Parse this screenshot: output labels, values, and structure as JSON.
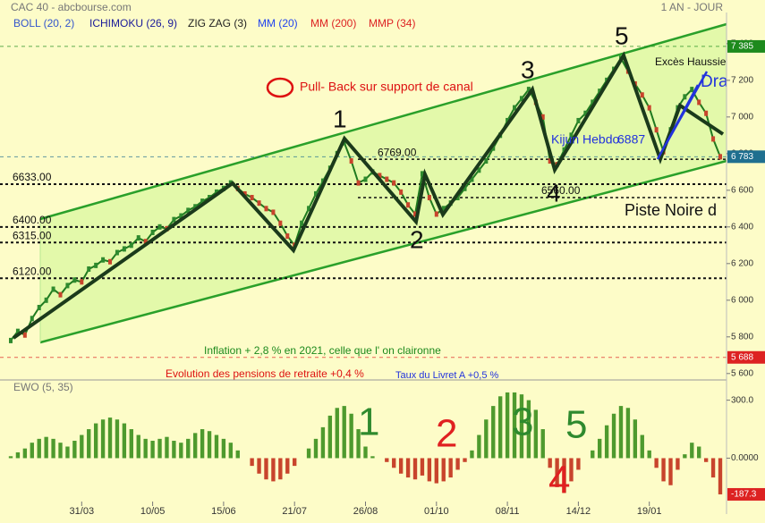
{
  "chart_data": [
    {
      "type": "line",
      "title": "CAC 40 - abcbourse.com",
      "period": "1 AN - JOUR",
      "indicators": [
        {
          "name": "BOLL (20, 2)",
          "color": "#3355cc"
        },
        {
          "name": "ICHIMOKU (26, 9)",
          "color": "#1a1a99"
        },
        {
          "name": "ZIG ZAG (3)",
          "color": "#222222"
        },
        {
          "name": "MM (20)",
          "color": "#2244ee"
        },
        {
          "name": "MM (200)",
          "color": "#dd2222"
        },
        {
          "name": "MMP (34)",
          "color": "#dd2222"
        }
      ],
      "series": [
        {
          "color": "#1f7a1f",
          "values": [
            5780,
            5830,
            5810,
            5900,
            5960,
            6000,
            6060,
            6030,
            6080,
            6110,
            6100,
            6170,
            6190,
            6220,
            6210,
            6260,
            6280,
            6300,
            6340,
            6320,
            6370,
            6400,
            6390,
            6440,
            6460,
            6490,
            6510,
            6540,
            6560,
            6590,
            6610,
            6640,
            6610,
            6580,
            6560,
            6530,
            6500,
            6480,
            6420,
            6350,
            6300,
            6420,
            6500,
            6580,
            6650,
            6720,
            6800,
            6860,
            6760,
            6640,
            6660,
            6700,
            6680,
            6660,
            6640,
            6590,
            6520,
            6470,
            6690,
            6560,
            6470,
            6500,
            6530,
            6560,
            6610,
            6660,
            6710,
            6760,
            6830,
            6900,
            6980,
            7050,
            7100,
            7150,
            7080,
            7000,
            6760,
            6740,
            6820,
            6900,
            6980,
            7020,
            7080,
            7140,
            7200,
            7260,
            7320,
            7250,
            7180,
            7120,
            7050,
            6930,
            6810,
            6930,
            7050,
            7110,
            7150,
            7080,
            7020,
            6880,
            6783
          ]
        }
      ],
      "xticks": [
        {
          "value": 10,
          "label": "31/03"
        },
        {
          "value": 20,
          "label": "10/05"
        },
        {
          "value": 30,
          "label": "15/06"
        },
        {
          "value": 40,
          "label": "21/07"
        },
        {
          "value": 50,
          "label": "26/08"
        },
        {
          "value": 60,
          "label": "01/10"
        },
        {
          "value": 70,
          "label": "08/11"
        },
        {
          "value": 80,
          "label": "14/12"
        },
        {
          "value": 90,
          "label": "19/01"
        }
      ],
      "xlim": [
        0,
        100
      ],
      "ylim": [
        5560,
        7570
      ],
      "yticks": [
        {
          "value": 7400,
          "label": "7 400"
        },
        {
          "value": 7200,
          "label": "7 200"
        },
        {
          "value": 7000,
          "label": "7 000"
        },
        {
          "value": 6800,
          "label": "6 800"
        },
        {
          "value": 6600,
          "label": "6 600"
        },
        {
          "value": 6400,
          "label": "6 400"
        },
        {
          "value": 6200,
          "label": "6 200"
        },
        {
          "value": 6000,
          "label": "6 000"
        },
        {
          "value": 5800,
          "label": "5 800"
        },
        {
          "value": 5600,
          "label": "5 600"
        }
      ],
      "levels": [
        {
          "value": 6633,
          "label": "6633.00"
        },
        {
          "value": 6400,
          "label": "6400.00"
        },
        {
          "value": 6315,
          "label": "6315.00"
        },
        {
          "value": 6120,
          "label": "6120.00"
        },
        {
          "value": 6769,
          "label": "6769.00"
        },
        {
          "value": 6560,
          "label": "6560.00"
        }
      ],
      "markers": [
        {
          "value": 7385,
          "label": "7 385",
          "color": "#1d8a1d"
        },
        {
          "value": 6783,
          "label": "6 783",
          "color": "#1f6f8f"
        },
        {
          "value": 5688,
          "label": "5 688",
          "color": "#dd2222"
        }
      ],
      "annotations": [
        {
          "text": "Pull- Back sur support de canal",
          "color": "#dd1111"
        },
        {
          "text": "1",
          "color": "#111111"
        },
        {
          "text": "2",
          "color": "#111111"
        },
        {
          "text": "3",
          "color": "#111111"
        },
        {
          "text": "4",
          "color": "#111111"
        },
        {
          "text": "5",
          "color": "#111111"
        },
        {
          "text": "Excès Haussie",
          "color": "#111111"
        },
        {
          "text": "Dra",
          "color": "#2233dd"
        },
        {
          "text": "Kijun Hebdo",
          "color": "#2233dd"
        },
        {
          "text": "6887",
          "color": "#2233dd"
        },
        {
          "text": "Piste Noire d",
          "color": "#111111"
        },
        {
          "text": "Inflation + 2,8 % en 2021, celle que l' on claironne",
          "color": "#1d8a1d"
        },
        {
          "text": "Evolution des pensions de retraite +0,4 %",
          "color": "#dd1111"
        },
        {
          "text": "Taux du Livret A +0,5 %",
          "color": "#2233dd"
        }
      ]
    },
    {
      "type": "bar",
      "title": "EWO (5, 35)",
      "positive_color": "#4e9a2e",
      "negative_color": "#c8442c",
      "values": [
        10,
        30,
        50,
        80,
        100,
        110,
        100,
        80,
        60,
        90,
        120,
        150,
        180,
        200,
        210,
        200,
        180,
        150,
        120,
        100,
        90,
        100,
        110,
        90,
        80,
        100,
        130,
        150,
        140,
        120,
        100,
        80,
        40,
        0,
        -40,
        -80,
        -110,
        -120,
        -110,
        -80,
        -40,
        0,
        50,
        100,
        160,
        220,
        260,
        270,
        230,
        150,
        60,
        10,
        0,
        -20,
        -50,
        -80,
        -100,
        -110,
        -90,
        -120,
        -130,
        -120,
        -100,
        -60,
        -20,
        40,
        120,
        200,
        270,
        320,
        340,
        340,
        330,
        300,
        250,
        150,
        -50,
        -150,
        -180,
        -120,
        -60,
        0,
        40,
        100,
        170,
        230,
        270,
        260,
        200,
        120,
        40,
        -50,
        -120,
        -140,
        -60,
        20,
        80,
        60,
        -20,
        -100,
        -187.3
      ],
      "ylim": [
        -280,
        400
      ],
      "yticks": [
        {
          "value": 300,
          "label": "300.0"
        },
        {
          "value": 0,
          "label": "0.0000"
        }
      ],
      "markers": [
        {
          "value": -187.3,
          "label": "-187.3",
          "color": "#dd2222"
        }
      ],
      "annotations": [
        {
          "text": "1",
          "color": "#2e8a2e"
        },
        {
          "text": "2",
          "color": "#e02020"
        },
        {
          "text": "3",
          "color": "#2e8a2e"
        },
        {
          "text": "5",
          "color": "#2e8a2e"
        },
        {
          "text": "4",
          "color": "#e02020"
        }
      ]
    }
  ]
}
